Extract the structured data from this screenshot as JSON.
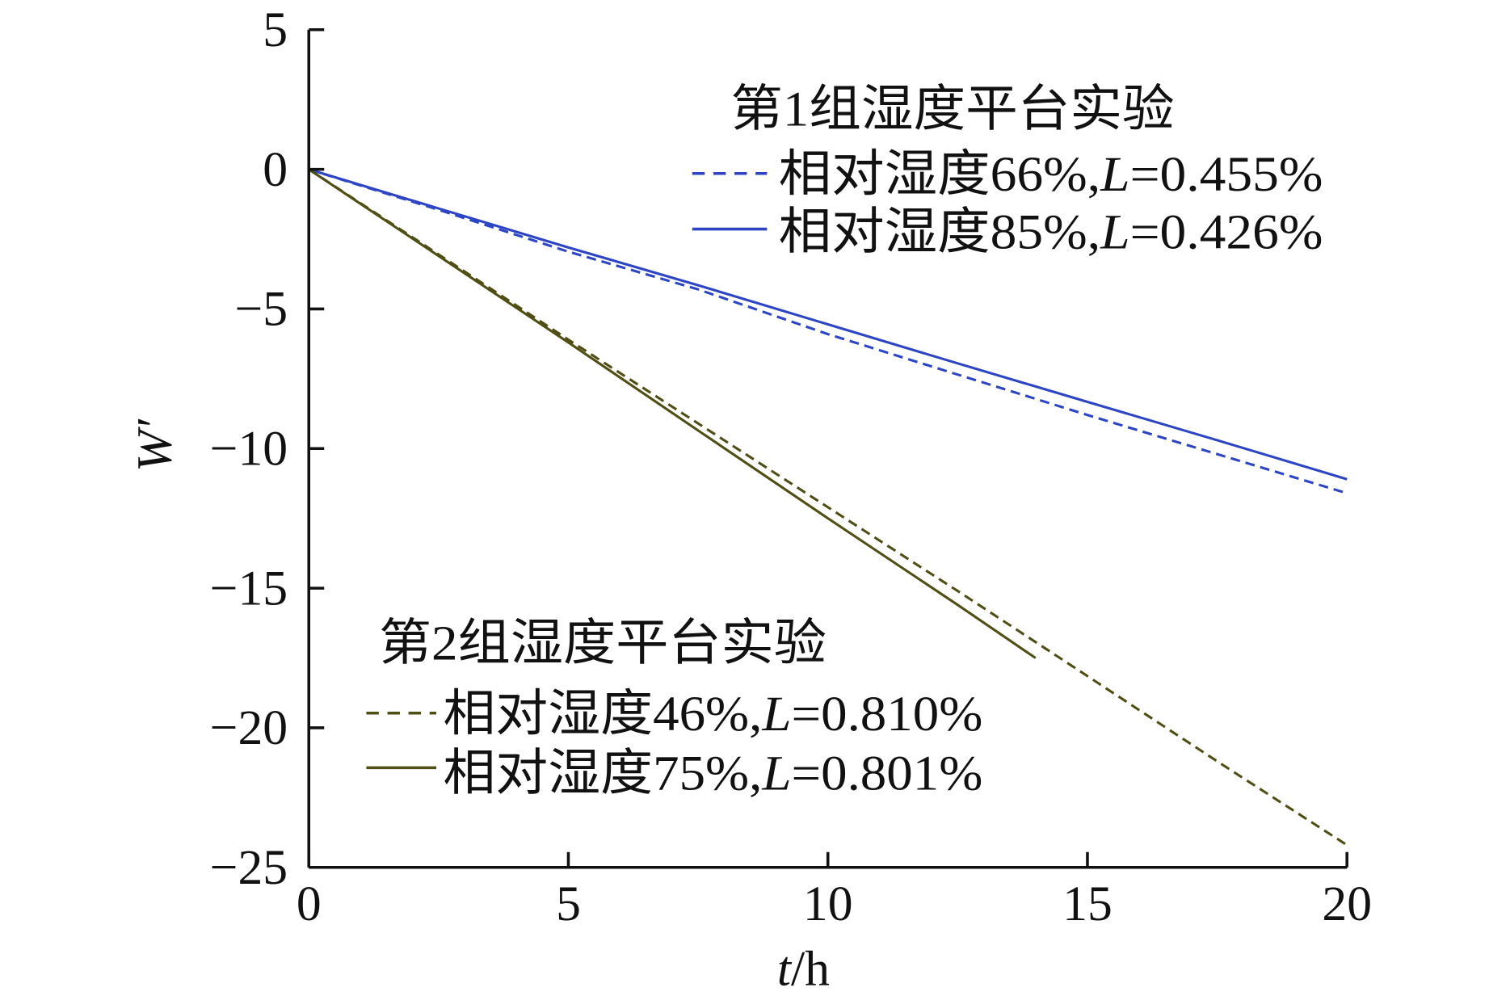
{
  "chart_data": {
    "type": "line",
    "xlabel": "t/h",
    "ylabel": "W′",
    "xlim": [
      0,
      20
    ],
    "ylim": [
      -25,
      5
    ],
    "xticks": [
      0,
      5,
      10,
      15,
      20
    ],
    "x_ticklabels": [
      "0",
      "5",
      "10",
      "15",
      "20"
    ],
    "yticks": [
      5,
      0,
      -5,
      -10,
      -15,
      -20,
      -25
    ],
    "y_ticklabels": [
      "5",
      "0",
      "−5",
      "−10",
      "−15",
      "−20",
      "−25"
    ],
    "grid": false,
    "legend_groups": [
      {
        "title": "第1组湿度平台实验",
        "placement": "top-right",
        "series": [
          0,
          1
        ]
      },
      {
        "title": "第2组湿度平台实验",
        "placement": "bottom-left",
        "series": [
          2,
          3
        ]
      }
    ],
    "series": [
      {
        "name": "相对湿度66%,L=0.455%",
        "color": "#2d45c4",
        "style": "dashed",
        "x": [
          0,
          2.5,
          5,
          7.5,
          10,
          12.5,
          15,
          17.5,
          20
        ],
        "y": [
          0,
          -1.45,
          -2.95,
          -4.3,
          -5.9,
          -7.35,
          -8.8,
          -10.2,
          -11.6
        ]
      },
      {
        "name": "相对湿度85%,L=0.426%",
        "color": "#2d45c4",
        "style": "solid",
        "x": [
          0,
          2.5,
          5,
          7.5,
          10,
          12.5,
          15,
          17.5,
          20
        ],
        "y": [
          0,
          -1.4,
          -2.8,
          -4.15,
          -5.55,
          -6.95,
          -8.33,
          -9.7,
          -11.1
        ]
      },
      {
        "name": "相对湿度46%,L=0.810%",
        "color": "#4f4e14",
        "style": "dashed",
        "x": [
          0,
          2.5,
          5,
          7.5,
          10,
          12.5,
          15,
          17.5,
          20
        ],
        "y": [
          0,
          -3.05,
          -6.1,
          -9.1,
          -12.1,
          -15.1,
          -18.15,
          -21.2,
          -24.2
        ]
      },
      {
        "name": "相对湿度75%,L=0.801%",
        "color": "#4f4e14",
        "style": "solid",
        "x": [
          0,
          2.5,
          5,
          7.5,
          10,
          12.5,
          14
        ],
        "y": [
          0,
          -3.1,
          -6.2,
          -9.35,
          -12.5,
          -15.6,
          -17.5
        ]
      }
    ]
  }
}
